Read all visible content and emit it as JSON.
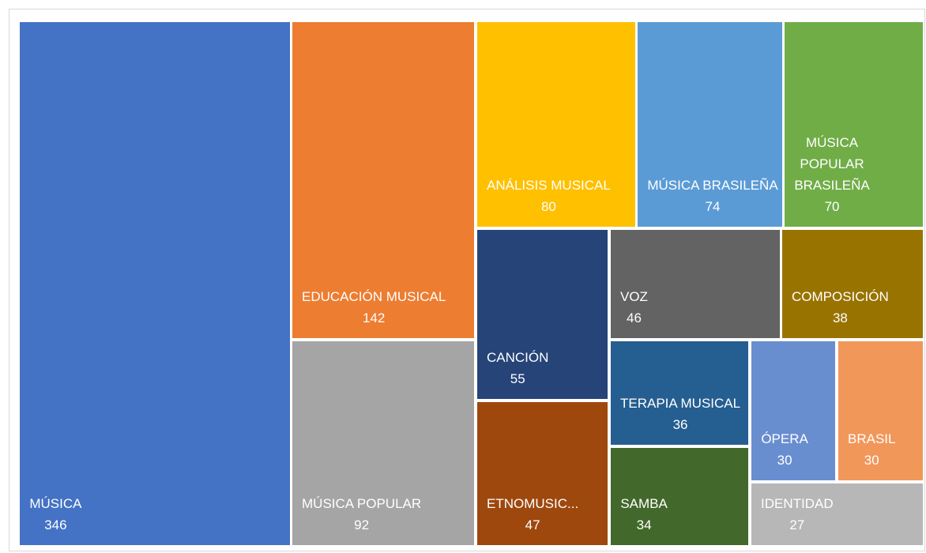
{
  "chart_data": {
    "type": "treemap",
    "categories": [
      "MÚSICA",
      "EDUCACIÓN MUSICAL",
      "MÚSICA POPULAR",
      "ANÁLISIS MUSICAL",
      "MÚSICA BRASILEÑA",
      "MÚSICA POPULAR BRASILEÑA",
      "CANCIÓN",
      "ETNOMUSIC...",
      "VOZ",
      "COMPOSICIÓN",
      "TERAPIA MUSICAL",
      "SAMBA",
      "ÓPERA",
      "BRASIL",
      "IDENTIDAD"
    ],
    "values": [
      346,
      142,
      92,
      80,
      74,
      70,
      55,
      47,
      46,
      38,
      36,
      34,
      30,
      30,
      27
    ],
    "colors": [
      "#4472c4",
      "#ed7d31",
      "#a5a5a5",
      "#ffc000",
      "#5b9bd5",
      "#70ad47",
      "#264478",
      "#9e480e",
      "#636363",
      "#997300",
      "#255e91",
      "#43682b",
      "#698ed0",
      "#f1975a",
      "#b7b7b7"
    ]
  }
}
